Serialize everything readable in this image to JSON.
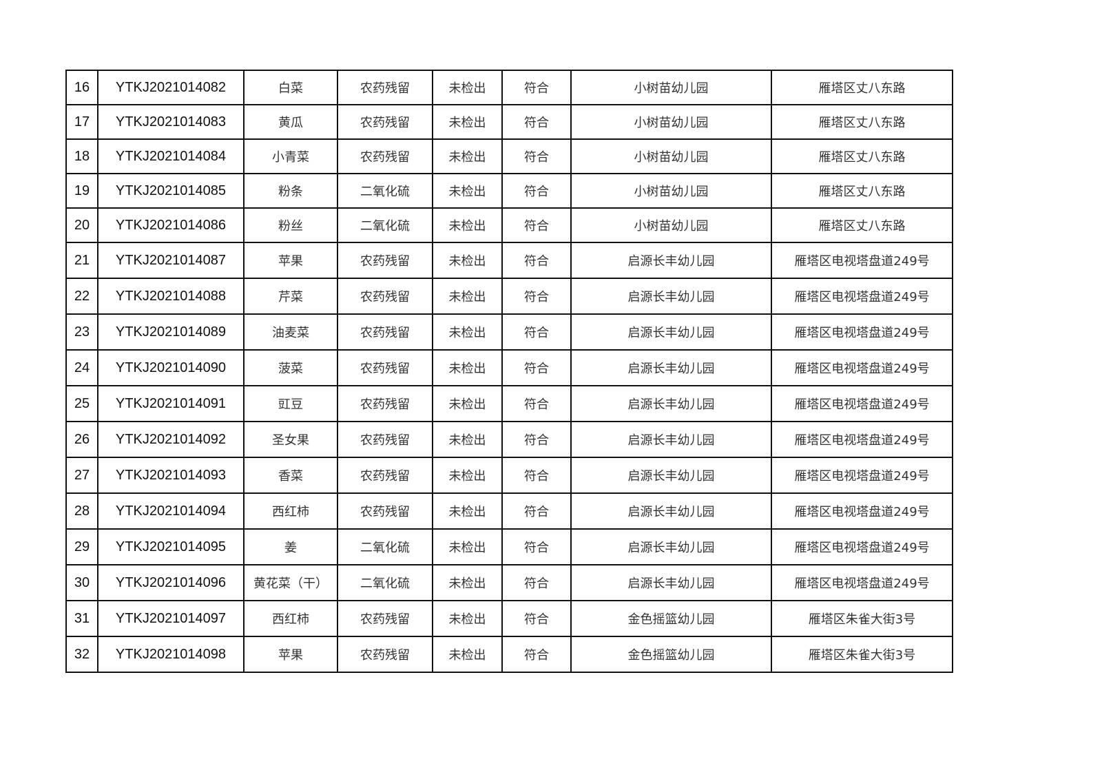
{
  "table": {
    "rows": [
      {
        "no": "16",
        "code": "YTKJ2021014082",
        "sample": "白菜",
        "item": "农药残留",
        "result": "未检出",
        "verdict": "符合",
        "unit": "小树苗幼儿园",
        "address": "雁塔区丈八东路"
      },
      {
        "no": "17",
        "code": "YTKJ2021014083",
        "sample": "黄瓜",
        "item": "农药残留",
        "result": "未检出",
        "verdict": "符合",
        "unit": "小树苗幼儿园",
        "address": "雁塔区丈八东路"
      },
      {
        "no": "18",
        "code": "YTKJ2021014084",
        "sample": "小青菜",
        "item": "农药残留",
        "result": "未检出",
        "verdict": "符合",
        "unit": "小树苗幼儿园",
        "address": "雁塔区丈八东路"
      },
      {
        "no": "19",
        "code": "YTKJ2021014085",
        "sample": "粉条",
        "item": "二氧化硫",
        "result": "未检出",
        "verdict": "符合",
        "unit": "小树苗幼儿园",
        "address": "雁塔区丈八东路"
      },
      {
        "no": "20",
        "code": "YTKJ2021014086",
        "sample": "粉丝",
        "item": "二氧化硫",
        "result": "未检出",
        "verdict": "符合",
        "unit": "小树苗幼儿园",
        "address": "雁塔区丈八东路"
      },
      {
        "no": "21",
        "code": "YTKJ2021014087",
        "sample": "苹果",
        "item": "农药残留",
        "result": "未检出",
        "verdict": "符合",
        "unit": "启源长丰幼儿园",
        "address": "雁塔区电视塔盘道249号"
      },
      {
        "no": "22",
        "code": "YTKJ2021014088",
        "sample": "芹菜",
        "item": "农药残留",
        "result": "未检出",
        "verdict": "符合",
        "unit": "启源长丰幼儿园",
        "address": "雁塔区电视塔盘道249号"
      },
      {
        "no": "23",
        "code": "YTKJ2021014089",
        "sample": "油麦菜",
        "item": "农药残留",
        "result": "未检出",
        "verdict": "符合",
        "unit": "启源长丰幼儿园",
        "address": "雁塔区电视塔盘道249号"
      },
      {
        "no": "24",
        "code": "YTKJ2021014090",
        "sample": "菠菜",
        "item": "农药残留",
        "result": "未检出",
        "verdict": "符合",
        "unit": "启源长丰幼儿园",
        "address": "雁塔区电视塔盘道249号"
      },
      {
        "no": "25",
        "code": "YTKJ2021014091",
        "sample": "豇豆",
        "item": "农药残留",
        "result": "未检出",
        "verdict": "符合",
        "unit": "启源长丰幼儿园",
        "address": "雁塔区电视塔盘道249号"
      },
      {
        "no": "26",
        "code": "YTKJ2021014092",
        "sample": "圣女果",
        "item": "农药残留",
        "result": "未检出",
        "verdict": "符合",
        "unit": "启源长丰幼儿园",
        "address": "雁塔区电视塔盘道249号"
      },
      {
        "no": "27",
        "code": "YTKJ2021014093",
        "sample": "香菜",
        "item": "农药残留",
        "result": "未检出",
        "verdict": "符合",
        "unit": "启源长丰幼儿园",
        "address": "雁塔区电视塔盘道249号"
      },
      {
        "no": "28",
        "code": "YTKJ2021014094",
        "sample": "西红柿",
        "item": "农药残留",
        "result": "未检出",
        "verdict": "符合",
        "unit": "启源长丰幼儿园",
        "address": "雁塔区电视塔盘道249号"
      },
      {
        "no": "29",
        "code": "YTKJ2021014095",
        "sample": "姜",
        "item": "二氧化硫",
        "result": "未检出",
        "verdict": "符合",
        "unit": "启源长丰幼儿园",
        "address": "雁塔区电视塔盘道249号"
      },
      {
        "no": "30",
        "code": "YTKJ2021014096",
        "sample": "黄花菜（干）",
        "item": "二氧化硫",
        "result": "未检出",
        "verdict": "符合",
        "unit": "启源长丰幼儿园",
        "address": "雁塔区电视塔盘道249号"
      },
      {
        "no": "31",
        "code": "YTKJ2021014097",
        "sample": "西红柿",
        "item": "农药残留",
        "result": "未检出",
        "verdict": "符合",
        "unit": "金色摇篮幼儿园",
        "address": "雁塔区朱雀大街3号"
      },
      {
        "no": "32",
        "code": "YTKJ2021014098",
        "sample": "苹果",
        "item": "农药残留",
        "result": "未检出",
        "verdict": "符合",
        "unit": "金色摇篮幼儿园",
        "address": "雁塔区朱雀大街3号"
      }
    ]
  }
}
